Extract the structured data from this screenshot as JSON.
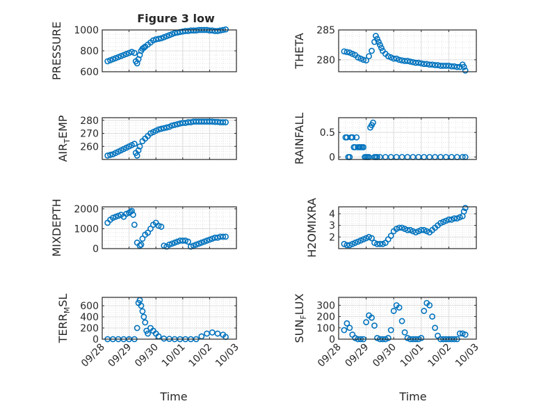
{
  "figure_title": "Figure 3 low",
  "colors": {
    "marker": "#0072BD",
    "axis": "#262626",
    "grid": "#d7d7d7",
    "background": "#ffffff"
  },
  "shared_xlabel": "Time",
  "shared_xticks": [
    "09/28",
    "09/29",
    "09/30",
    "10/01",
    "10/02",
    "10/03"
  ],
  "chart_data": [
    {
      "type": "scatter",
      "ylabel": "PRESSURE",
      "ylim": [
        600,
        1000
      ],
      "yticks": [
        "600",
        "800",
        "1000"
      ],
      "grid": true,
      "x": [
        0.2,
        0.3,
        0.4,
        0.5,
        0.6,
        0.7,
        0.8,
        0.9,
        1.0,
        1.1,
        1.2,
        1.25,
        1.3,
        1.35,
        1.4,
        1.45,
        1.5,
        1.55,
        1.6,
        1.7,
        1.8,
        1.9,
        2.0,
        2.1,
        2.2,
        2.3,
        2.4,
        2.5,
        2.6,
        2.7,
        2.8,
        2.9,
        3.0,
        3.1,
        3.2,
        3.3,
        3.4,
        3.5,
        3.6,
        3.7,
        3.8,
        3.9,
        4.0,
        4.1,
        4.2,
        4.3,
        4.4,
        4.5,
        4.6
      ],
      "y": [
        700,
        710,
        720,
        730,
        740,
        750,
        760,
        770,
        780,
        790,
        780,
        700,
        680,
        720,
        760,
        800,
        820,
        830,
        840,
        860,
        880,
        900,
        910,
        915,
        920,
        930,
        940,
        950,
        960,
        970,
        975,
        980,
        985,
        990,
        990,
        995,
        995,
        995,
        1000,
        1000,
        1000,
        1000,
        995,
        995,
        990,
        990,
        995,
        1000,
        1005
      ]
    },
    {
      "type": "scatter",
      "ylabel": "THETA",
      "ylim": [
        278,
        285
      ],
      "yticks": [
        "280",
        "285"
      ],
      "grid": true,
      "x": [
        0.2,
        0.3,
        0.4,
        0.5,
        0.6,
        0.7,
        0.8,
        0.9,
        1.0,
        1.1,
        1.2,
        1.3,
        1.35,
        1.4,
        1.45,
        1.5,
        1.55,
        1.6,
        1.7,
        1.8,
        1.9,
        2.0,
        2.1,
        2.2,
        2.3,
        2.4,
        2.5,
        2.6,
        2.7,
        2.8,
        2.9,
        3.0,
        3.1,
        3.2,
        3.3,
        3.4,
        3.5,
        3.6,
        3.7,
        3.8,
        3.9,
        4.0,
        4.1,
        4.2,
        4.3,
        4.4,
        4.5,
        4.55,
        4.6
      ],
      "y": [
        281.4,
        281.3,
        281.2,
        281.0,
        280.8,
        280.4,
        280.2,
        280.0,
        279.9,
        280.6,
        281.5,
        283.0,
        284.0,
        283.5,
        283.0,
        282.5,
        282.0,
        281.5,
        281.0,
        280.6,
        280.4,
        280.2,
        280.2,
        280.0,
        279.9,
        279.8,
        279.8,
        279.7,
        279.6,
        279.5,
        279.5,
        279.4,
        279.3,
        279.3,
        279.2,
        279.2,
        279.1,
        279.1,
        279.0,
        279.0,
        279.0,
        279.0,
        278.9,
        278.9,
        278.8,
        278.8,
        279.2,
        278.8,
        278.2
      ]
    },
    {
      "type": "scatter",
      "ylabel": "AIR_TEMP",
      "ylim": [
        250,
        282
      ],
      "yticks": [
        "260",
        "270",
        "280"
      ],
      "grid": true,
      "x": [
        0.2,
        0.3,
        0.4,
        0.5,
        0.6,
        0.7,
        0.8,
        0.9,
        1.0,
        1.1,
        1.2,
        1.25,
        1.3,
        1.35,
        1.4,
        1.5,
        1.6,
        1.7,
        1.8,
        1.9,
        2.0,
        2.1,
        2.2,
        2.3,
        2.4,
        2.5,
        2.6,
        2.7,
        2.8,
        2.9,
        3.0,
        3.1,
        3.2,
        3.3,
        3.4,
        3.5,
        3.6,
        3.7,
        3.8,
        3.9,
        4.0,
        4.1,
        4.2,
        4.3,
        4.4,
        4.5,
        4.6
      ],
      "y": [
        253,
        253.5,
        254,
        255,
        256,
        257,
        258,
        259,
        260,
        261,
        262,
        255,
        253,
        257,
        260,
        264,
        266,
        268,
        270,
        271,
        272,
        273,
        273.5,
        274,
        274.5,
        275,
        276,
        276.5,
        277,
        277.5,
        278,
        278,
        278.5,
        278.5,
        279,
        279,
        279,
        279,
        279,
        279,
        279,
        279,
        278.8,
        278.8,
        278.5,
        278.5,
        278.5
      ]
    },
    {
      "type": "scatter",
      "ylabel": "RAINFALL",
      "ylim": [
        -0.05,
        0.8
      ],
      "yticks": [
        "0",
        "0.5"
      ],
      "grid": true,
      "x": [
        0.25,
        0.3,
        0.35,
        0.4,
        0.45,
        0.5,
        0.55,
        0.6,
        0.65,
        0.7,
        0.75,
        0.8,
        0.85,
        0.9,
        0.95,
        1.0,
        1.05,
        1.1,
        1.15,
        1.2,
        1.25,
        1.3,
        1.35,
        1.4,
        1.5,
        1.7,
        1.9,
        2.1,
        2.3,
        2.5,
        2.7,
        2.9,
        3.1,
        3.3,
        3.5,
        3.7,
        3.9,
        4.1,
        4.3,
        4.5,
        4.6
      ],
      "y": [
        0.4,
        0.4,
        0.0,
        0.0,
        0.4,
        0.4,
        0.2,
        0.2,
        0.4,
        0.2,
        0.2,
        0.2,
        0.2,
        0.2,
        0.0,
        0.0,
        0.0,
        0.0,
        0.6,
        0.65,
        0.7,
        0.0,
        0.0,
        0.0,
        0.0,
        0.0,
        0.0,
        0.0,
        0.0,
        0.0,
        0.0,
        0.0,
        0.0,
        0.0,
        0.0,
        0.0,
        0.0,
        0.0,
        0.0,
        0.0,
        0.0
      ]
    },
    {
      "type": "scatter",
      "ylabel": "MIXDEPTH",
      "ylim": [
        0,
        2100
      ],
      "yticks": [
        "0",
        "1000",
        "2000"
      ],
      "grid": true,
      "x": [
        0.2,
        0.3,
        0.4,
        0.5,
        0.6,
        0.7,
        0.8,
        0.9,
        1.0,
        1.05,
        1.1,
        1.15,
        1.2,
        1.3,
        1.4,
        1.45,
        1.5,
        1.6,
        1.7,
        1.8,
        1.9,
        2.0,
        2.1,
        2.2,
        2.3,
        2.4,
        2.5,
        2.6,
        2.7,
        2.8,
        2.9,
        3.0,
        3.1,
        3.2,
        3.3,
        3.4,
        3.5,
        3.6,
        3.7,
        3.8,
        3.9,
        4.0,
        4.1,
        4.2,
        4.3,
        4.4,
        4.5,
        4.6
      ],
      "y": [
        1300,
        1450,
        1550,
        1600,
        1650,
        1700,
        1600,
        1750,
        1800,
        1850,
        1900,
        1700,
        1200,
        300,
        150,
        200,
        500,
        700,
        800,
        1000,
        1200,
        1300,
        1150,
        1100,
        150,
        100,
        200,
        250,
        300,
        350,
        400,
        400,
        400,
        350,
        100,
        150,
        200,
        250,
        300,
        350,
        400,
        450,
        500,
        550,
        550,
        600,
        600,
        600
      ]
    },
    {
      "type": "scatter",
      "ylabel": "H2OMIXRA",
      "ylim": [
        1.0,
        4.6
      ],
      "yticks": [
        "2",
        "3",
        "4"
      ],
      "grid": true,
      "x": [
        0.2,
        0.3,
        0.4,
        0.5,
        0.6,
        0.7,
        0.8,
        0.9,
        1.0,
        1.1,
        1.2,
        1.3,
        1.4,
        1.5,
        1.6,
        1.7,
        1.8,
        1.9,
        2.0,
        2.1,
        2.2,
        2.3,
        2.4,
        2.5,
        2.6,
        2.7,
        2.8,
        2.9,
        3.0,
        3.1,
        3.2,
        3.3,
        3.4,
        3.5,
        3.6,
        3.7,
        3.8,
        3.9,
        4.0,
        4.1,
        4.2,
        4.3,
        4.4,
        4.5,
        4.55,
        4.6
      ],
      "y": [
        1.4,
        1.3,
        1.3,
        1.4,
        1.5,
        1.6,
        1.7,
        1.8,
        1.9,
        2.0,
        1.9,
        1.5,
        1.4,
        1.4,
        1.4,
        1.5,
        1.8,
        2.1,
        2.5,
        2.7,
        2.8,
        2.8,
        2.7,
        2.6,
        2.6,
        2.5,
        2.4,
        2.5,
        2.6,
        2.6,
        2.5,
        2.4,
        2.6,
        2.8,
        3.0,
        3.2,
        3.3,
        3.4,
        3.5,
        3.5,
        3.6,
        3.6,
        3.7,
        3.8,
        4.2,
        4.5
      ]
    },
    {
      "type": "scatter",
      "ylabel": "TERR_MSL",
      "ylim": [
        0,
        750
      ],
      "yticks": [
        "0",
        "200",
        "400",
        "600"
      ],
      "grid": true,
      "x": [
        0.2,
        0.4,
        0.6,
        0.8,
        1.0,
        1.2,
        1.3,
        1.35,
        1.4,
        1.45,
        1.5,
        1.55,
        1.6,
        1.65,
        1.7,
        1.8,
        1.9,
        2.0,
        2.1,
        2.3,
        2.5,
        2.7,
        2.9,
        3.1,
        3.3,
        3.5,
        3.7,
        3.9,
        4.1,
        4.3,
        4.5,
        4.6
      ],
      "y": [
        0,
        0,
        0,
        0,
        0,
        0,
        200,
        650,
        700,
        600,
        500,
        400,
        300,
        150,
        100,
        200,
        150,
        100,
        50,
        10,
        5,
        0,
        0,
        0,
        0,
        0,
        50,
        100,
        120,
        100,
        80,
        40
      ]
    },
    {
      "type": "scatter",
      "ylabel": "SUN_FLUX",
      "ylim": [
        0,
        370
      ],
      "yticks": [
        "0",
        "100",
        "200",
        "300"
      ],
      "grid": true,
      "x": [
        0.2,
        0.3,
        0.4,
        0.5,
        0.6,
        0.7,
        0.8,
        0.9,
        1.0,
        1.1,
        1.2,
        1.3,
        1.4,
        1.5,
        1.6,
        1.7,
        1.8,
        1.9,
        2.0,
        2.1,
        2.2,
        2.3,
        2.4,
        2.5,
        2.6,
        2.7,
        2.8,
        2.9,
        3.0,
        3.1,
        3.2,
        3.3,
        3.4,
        3.5,
        3.6,
        3.7,
        3.8,
        3.9,
        4.0,
        4.1,
        4.2,
        4.3,
        4.4,
        4.5,
        4.6
      ],
      "y": [
        80,
        140,
        100,
        40,
        10,
        0,
        0,
        0,
        150,
        210,
        190,
        120,
        10,
        0,
        0,
        0,
        10,
        80,
        250,
        300,
        280,
        160,
        60,
        10,
        0,
        0,
        0,
        0,
        10,
        250,
        320,
        300,
        200,
        100,
        30,
        0,
        0,
        0,
        0,
        0,
        0,
        0,
        50,
        50,
        40
      ]
    }
  ]
}
